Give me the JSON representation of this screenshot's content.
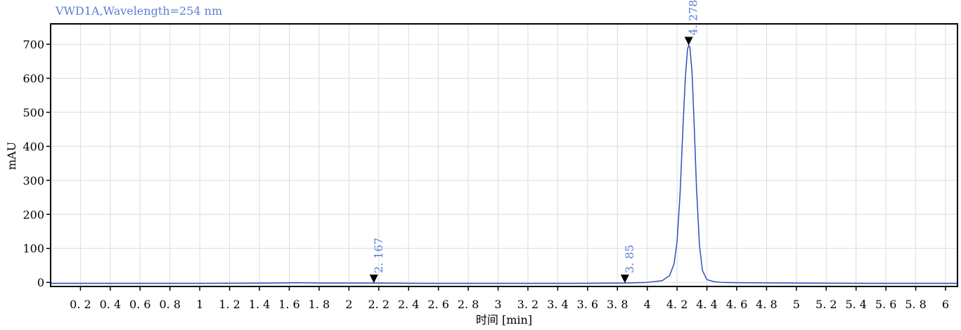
{
  "chart_data": {
    "type": "line",
    "title": "VWD1A,Wavelength=254 nm",
    "xlabel": "时间 [min]",
    "ylabel": "mAU",
    "xlim": [
      0.0,
      6.08
    ],
    "ylim": [
      -12,
      760
    ],
    "x_ticks": [
      0.2,
      0.4,
      0.6,
      0.8,
      1,
      1.2,
      1.4,
      1.6,
      1.8,
      2,
      2.2,
      2.4,
      2.6,
      2.8,
      3,
      3.2,
      3.4,
      3.6,
      3.8,
      4,
      4.2,
      4.4,
      4.6,
      4.8,
      5,
      5.2,
      5.4,
      5.6,
      5.8,
      6
    ],
    "x_tick_labels": [
      "0. 2",
      "0. 4",
      "0. 6",
      "0. 8",
      "1",
      "1. 2",
      "1. 4",
      "1. 6",
      "1. 8",
      "2",
      "2. 2",
      "2. 4",
      "2. 6",
      "2. 8",
      "3",
      "3. 2",
      "3. 4",
      "3. 6",
      "3. 8",
      "4",
      "4. 2",
      "4. 4",
      "4. 6",
      "4. 8",
      "5",
      "5. 2",
      "5. 4",
      "5. 6",
      "5. 8",
      "6"
    ],
    "y_ticks": [
      0,
      100,
      200,
      300,
      400,
      500,
      600,
      700
    ],
    "y_tick_labels": [
      "0",
      "100",
      "200",
      "300",
      "400",
      "500",
      "600",
      "700"
    ],
    "grid": true,
    "series": [
      {
        "color": "#2f4fbf",
        "x": [
          0.0,
          0.5,
          1.0,
          1.5,
          1.65,
          1.8,
          2.0,
          2.167,
          2.5,
          3.0,
          3.5,
          3.85,
          4.0,
          4.1,
          4.15,
          4.18,
          4.2,
          4.22,
          4.24,
          4.255,
          4.27,
          4.278,
          4.286,
          4.3,
          4.315,
          4.33,
          4.35,
          4.37,
          4.4,
          4.45,
          4.5,
          4.6,
          5.0,
          5.5,
          6.0,
          6.08
        ],
        "y": [
          -3,
          -3,
          -3,
          -2,
          -1,
          -2,
          -2,
          -2,
          -3,
          -3,
          -3,
          -2,
          0,
          5,
          20,
          55,
          120,
          260,
          460,
          600,
          685,
          697,
          690,
          620,
          460,
          280,
          110,
          35,
          8,
          2,
          0,
          -1,
          -2,
          -3,
          -3,
          -3
        ]
      }
    ],
    "peaks": [
      {
        "rt": 2.167,
        "label": "2. 167",
        "y": -2
      },
      {
        "rt": 3.85,
        "label": "3. 85",
        "y": -2
      },
      {
        "rt": 4.278,
        "label": "4. 278",
        "y": 697
      }
    ],
    "colors": {
      "signal": "#2f4fbf",
      "label": "#5b7fd6",
      "grid": "#dcdcdc",
      "axis": "#000000",
      "marker": "#000000"
    }
  }
}
